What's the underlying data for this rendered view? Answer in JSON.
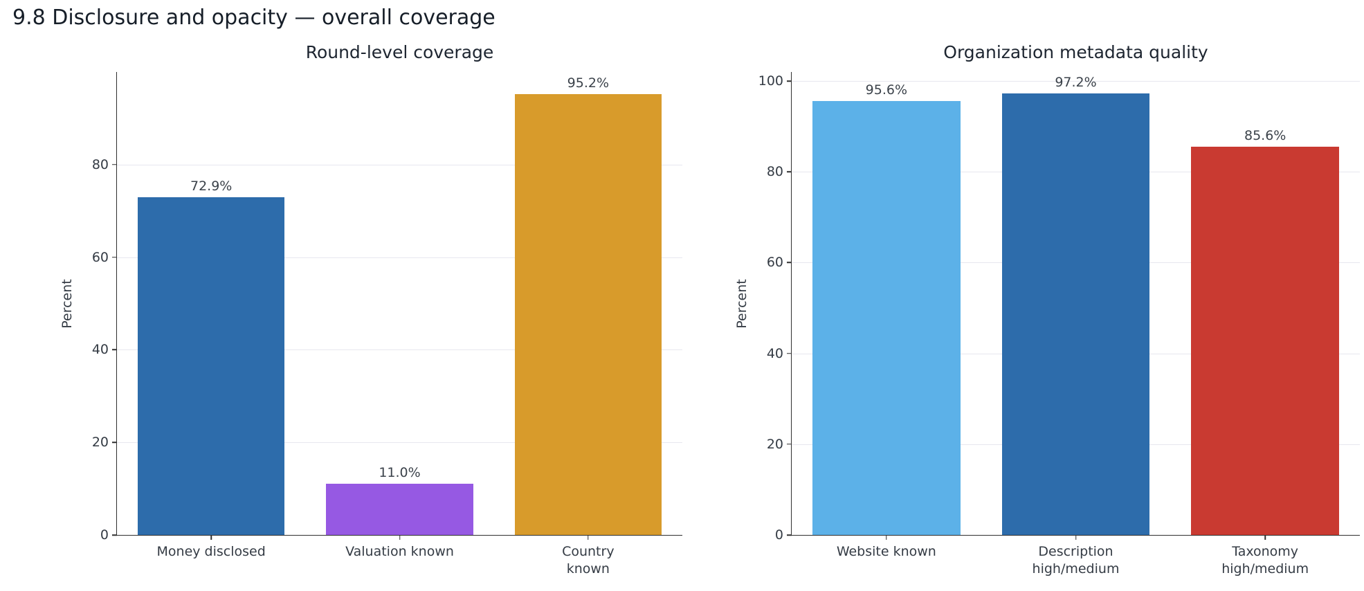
{
  "page_title": "9.8 Disclosure and opacity — overall coverage",
  "chart_data": [
    {
      "type": "bar",
      "title": "Round-level coverage",
      "xlabel": "",
      "ylabel": "Percent",
      "ylim": [
        0,
        100
      ],
      "yticks": [
        0,
        20,
        40,
        60,
        80
      ],
      "grid": true,
      "legend": "none",
      "categories": [
        "Money disclosed",
        "Valuation known",
        "Country known"
      ],
      "values": [
        72.9,
        11.0,
        95.2
      ],
      "value_labels": [
        "72.9%",
        "11.0%",
        "95.2%"
      ],
      "bar_colors": [
        "#2d6cab",
        "#9659e3",
        "#d89b2b"
      ]
    },
    {
      "type": "bar",
      "title": "Organization metadata quality",
      "xlabel": "",
      "ylabel": "Percent",
      "ylim": [
        0,
        102
      ],
      "yticks": [
        0,
        20,
        40,
        60,
        80,
        100
      ],
      "grid": true,
      "legend": "none",
      "categories": [
        "Website known",
        "Description\nhigh/medium",
        "Taxonomy\nhigh/medium"
      ],
      "values": [
        95.6,
        97.2,
        85.6
      ],
      "value_labels": [
        "95.6%",
        "97.2%",
        "85.6%"
      ],
      "bar_colors": [
        "#5cb1e8",
        "#2d6cab",
        "#c93a31"
      ]
    }
  ]
}
